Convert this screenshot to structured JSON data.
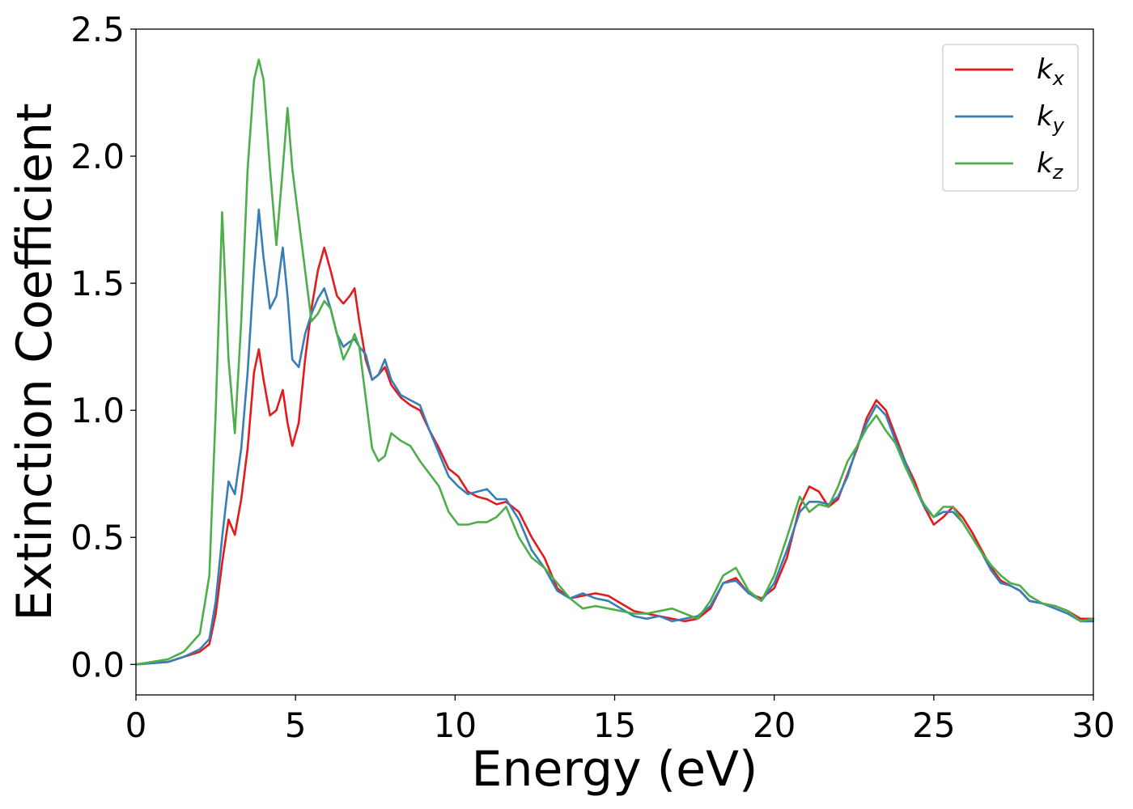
{
  "chart_data": {
    "type": "line",
    "title": "",
    "xlabel": "Energy (eV)",
    "ylabel": "Extinction Coefficient",
    "xlim": [
      0,
      30
    ],
    "ylim": [
      -0.12,
      2.5
    ],
    "xticks": [
      0,
      5,
      10,
      15,
      20,
      25,
      30
    ],
    "xtick_labels": [
      "0",
      "5",
      "10",
      "15",
      "20",
      "25",
      "30"
    ],
    "yticks": [
      0.0,
      0.5,
      1.0,
      1.5,
      2.0,
      2.5
    ],
    "ytick_labels": [
      "0.0",
      "0.5",
      "1.0",
      "1.5",
      "2.0",
      "2.5"
    ],
    "grid": false,
    "legend_position": "top-right",
    "series": [
      {
        "name": "kx",
        "label_base": "k",
        "label_sub": "x",
        "color": "#e41a1c",
        "x": [
          0,
          1,
          1.5,
          2.0,
          2.3,
          2.5,
          2.7,
          2.9,
          3.1,
          3.3,
          3.5,
          3.7,
          3.85,
          4.0,
          4.2,
          4.4,
          4.6,
          4.75,
          4.9,
          5.1,
          5.3,
          5.5,
          5.7,
          5.9,
          6.1,
          6.3,
          6.5,
          6.7,
          6.85,
          7.0,
          7.2,
          7.4,
          7.6,
          7.8,
          8.0,
          8.3,
          8.6,
          8.9,
          9.2,
          9.5,
          9.8,
          10.1,
          10.4,
          10.7,
          11.0,
          11.3,
          11.6,
          12.0,
          12.4,
          12.8,
          13.2,
          13.6,
          14.0,
          14.4,
          14.8,
          15.2,
          15.6,
          16.0,
          16.4,
          16.8,
          17.2,
          17.6,
          18.0,
          18.4,
          18.8,
          19.2,
          19.6,
          20.0,
          20.4,
          20.8,
          21.1,
          21.4,
          21.7,
          22.0,
          22.3,
          22.6,
          22.9,
          23.2,
          23.5,
          23.8,
          24.1,
          24.4,
          24.7,
          25.0,
          25.3,
          25.6,
          25.9,
          26.2,
          26.5,
          26.8,
          27.1,
          27.4,
          27.7,
          28.0,
          28.4,
          28.8,
          29.2,
          29.6,
          30.0
        ],
        "values": [
          0.0,
          0.01,
          0.03,
          0.05,
          0.08,
          0.2,
          0.4,
          0.57,
          0.51,
          0.65,
          0.85,
          1.15,
          1.24,
          1.12,
          0.98,
          1.0,
          1.08,
          0.95,
          0.86,
          0.95,
          1.2,
          1.4,
          1.55,
          1.64,
          1.55,
          1.45,
          1.42,
          1.45,
          1.48,
          1.35,
          1.2,
          1.12,
          1.14,
          1.17,
          1.1,
          1.05,
          1.02,
          1.0,
          0.92,
          0.85,
          0.77,
          0.74,
          0.68,
          0.66,
          0.65,
          0.63,
          0.64,
          0.6,
          0.5,
          0.42,
          0.3,
          0.26,
          0.27,
          0.28,
          0.27,
          0.24,
          0.21,
          0.2,
          0.19,
          0.18,
          0.17,
          0.18,
          0.22,
          0.32,
          0.34,
          0.28,
          0.26,
          0.3,
          0.42,
          0.62,
          0.7,
          0.68,
          0.62,
          0.65,
          0.75,
          0.85,
          0.97,
          1.04,
          1.0,
          0.9,
          0.8,
          0.72,
          0.62,
          0.55,
          0.58,
          0.62,
          0.58,
          0.52,
          0.45,
          0.38,
          0.33,
          0.31,
          0.29,
          0.25,
          0.24,
          0.23,
          0.21,
          0.18,
          0.18
        ]
      },
      {
        "name": "ky",
        "label_base": "k",
        "label_sub": "y",
        "color": "#377eb8",
        "x": [
          0,
          1,
          1.5,
          2.0,
          2.3,
          2.5,
          2.7,
          2.9,
          3.1,
          3.3,
          3.5,
          3.7,
          3.85,
          4.0,
          4.2,
          4.4,
          4.6,
          4.75,
          4.9,
          5.1,
          5.3,
          5.5,
          5.7,
          5.9,
          6.1,
          6.3,
          6.5,
          6.7,
          6.85,
          7.0,
          7.2,
          7.4,
          7.6,
          7.8,
          8.0,
          8.3,
          8.6,
          8.9,
          9.2,
          9.5,
          9.8,
          10.1,
          10.4,
          10.7,
          11.0,
          11.3,
          11.6,
          12.0,
          12.4,
          12.8,
          13.2,
          13.6,
          14.0,
          14.4,
          14.8,
          15.2,
          15.6,
          16.0,
          16.4,
          16.8,
          17.2,
          17.6,
          18.0,
          18.4,
          18.8,
          19.2,
          19.6,
          20.0,
          20.4,
          20.8,
          21.1,
          21.4,
          21.7,
          22.0,
          22.3,
          22.6,
          22.9,
          23.2,
          23.5,
          23.8,
          24.1,
          24.4,
          24.7,
          25.0,
          25.3,
          25.6,
          25.9,
          26.2,
          26.5,
          26.8,
          27.1,
          27.4,
          27.7,
          28.0,
          28.4,
          28.8,
          29.2,
          29.6,
          30.0
        ],
        "values": [
          0.0,
          0.01,
          0.03,
          0.06,
          0.1,
          0.25,
          0.5,
          0.72,
          0.67,
          0.85,
          1.15,
          1.55,
          1.79,
          1.6,
          1.4,
          1.45,
          1.64,
          1.45,
          1.2,
          1.17,
          1.3,
          1.38,
          1.44,
          1.48,
          1.4,
          1.3,
          1.25,
          1.27,
          1.28,
          1.25,
          1.22,
          1.12,
          1.14,
          1.2,
          1.12,
          1.06,
          1.04,
          1.02,
          0.92,
          0.83,
          0.74,
          0.7,
          0.67,
          0.68,
          0.69,
          0.65,
          0.65,
          0.57,
          0.45,
          0.38,
          0.29,
          0.26,
          0.28,
          0.26,
          0.25,
          0.22,
          0.19,
          0.18,
          0.19,
          0.17,
          0.18,
          0.19,
          0.23,
          0.32,
          0.33,
          0.28,
          0.25,
          0.32,
          0.45,
          0.6,
          0.64,
          0.64,
          0.63,
          0.66,
          0.74,
          0.86,
          0.95,
          1.02,
          0.98,
          0.88,
          0.8,
          0.7,
          0.62,
          0.58,
          0.6,
          0.6,
          0.56,
          0.5,
          0.44,
          0.37,
          0.32,
          0.31,
          0.29,
          0.25,
          0.24,
          0.22,
          0.2,
          0.17,
          0.17
        ]
      },
      {
        "name": "kz",
        "label_base": "k",
        "label_sub": "z",
        "color": "#4daf4a",
        "x": [
          0,
          1,
          1.5,
          2.0,
          2.3,
          2.5,
          2.7,
          2.9,
          3.1,
          3.3,
          3.5,
          3.7,
          3.85,
          4.0,
          4.2,
          4.4,
          4.6,
          4.75,
          4.9,
          5.1,
          5.3,
          5.5,
          5.7,
          5.9,
          6.1,
          6.3,
          6.5,
          6.7,
          6.85,
          7.0,
          7.2,
          7.4,
          7.6,
          7.8,
          8.0,
          8.3,
          8.6,
          8.9,
          9.2,
          9.5,
          9.8,
          10.1,
          10.4,
          10.7,
          11.0,
          11.3,
          11.6,
          12.0,
          12.4,
          12.8,
          13.2,
          13.6,
          14.0,
          14.4,
          14.8,
          15.2,
          15.6,
          16.0,
          16.4,
          16.8,
          17.2,
          17.6,
          18.0,
          18.4,
          18.8,
          19.2,
          19.6,
          20.0,
          20.4,
          20.8,
          21.1,
          21.4,
          21.7,
          22.0,
          22.3,
          22.6,
          22.9,
          23.2,
          23.5,
          23.8,
          24.1,
          24.4,
          24.7,
          25.0,
          25.3,
          25.6,
          25.9,
          26.2,
          26.5,
          26.8,
          27.1,
          27.4,
          27.7,
          28.0,
          28.4,
          28.8,
          29.2,
          29.6,
          30.0
        ],
        "values": [
          0.0,
          0.02,
          0.05,
          0.12,
          0.35,
          1.0,
          1.78,
          1.2,
          0.91,
          1.35,
          1.95,
          2.3,
          2.38,
          2.3,
          1.95,
          1.65,
          1.95,
          2.19,
          1.95,
          1.75,
          1.55,
          1.35,
          1.38,
          1.43,
          1.4,
          1.3,
          1.2,
          1.25,
          1.3,
          1.25,
          1.05,
          0.85,
          0.8,
          0.82,
          0.91,
          0.88,
          0.86,
          0.8,
          0.75,
          0.7,
          0.6,
          0.55,
          0.55,
          0.56,
          0.56,
          0.58,
          0.62,
          0.5,
          0.42,
          0.38,
          0.32,
          0.26,
          0.22,
          0.23,
          0.22,
          0.21,
          0.2,
          0.2,
          0.21,
          0.22,
          0.2,
          0.18,
          0.25,
          0.35,
          0.38,
          0.29,
          0.25,
          0.35,
          0.5,
          0.66,
          0.6,
          0.63,
          0.62,
          0.7,
          0.8,
          0.86,
          0.93,
          0.98,
          0.92,
          0.87,
          0.78,
          0.7,
          0.63,
          0.58,
          0.62,
          0.62,
          0.56,
          0.5,
          0.44,
          0.39,
          0.35,
          0.32,
          0.31,
          0.27,
          0.24,
          0.23,
          0.21,
          0.17,
          0.18
        ]
      }
    ]
  }
}
